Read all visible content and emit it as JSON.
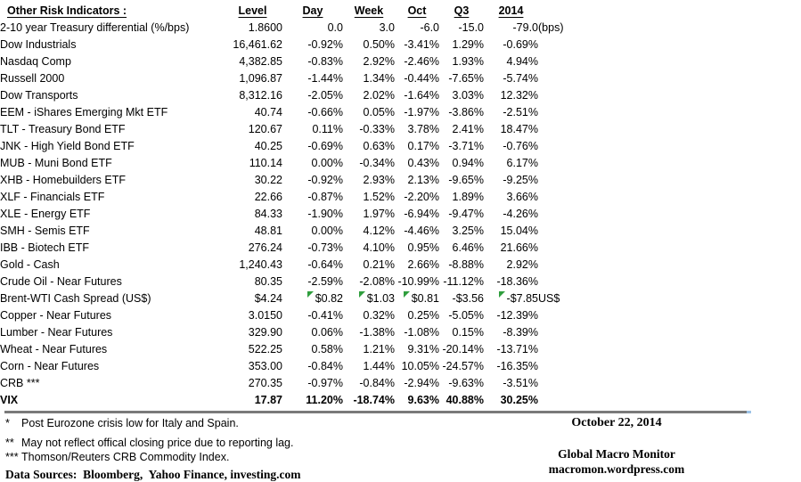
{
  "table": {
    "title": "Other Risk Indicators :",
    "columns": [
      "Level",
      "Day",
      "Week",
      "Oct",
      "Q3",
      "2014"
    ],
    "rows": [
      {
        "name": "2-10 year Treasury differential (%/bps)",
        "level": "1.8600",
        "day": "0.0",
        "week": "3.0",
        "oct": "-6.0",
        "q3": "-15.0",
        "y2014": "-79.0",
        "note": "(bps)"
      },
      {
        "name": "Dow Industrials",
        "level": "16,461.62",
        "day": "-0.92%",
        "week": "0.50%",
        "oct": "-3.41%",
        "q3": "1.29%",
        "y2014": "-0.69%",
        "note": ""
      },
      {
        "name": "Nasdaq Comp",
        "level": "4,382.85",
        "day": "-0.83%",
        "week": "2.92%",
        "oct": "-2.46%",
        "q3": "1.93%",
        "y2014": "4.94%",
        "note": ""
      },
      {
        "name": "Russell 2000",
        "level": "1,096.87",
        "day": "-1.44%",
        "week": "1.34%",
        "oct": "-0.44%",
        "q3": "-7.65%",
        "y2014": "-5.74%",
        "note": ""
      },
      {
        "name": "Dow Transports",
        "level": "8,312.16",
        "day": "-2.05%",
        "week": "2.02%",
        "oct": "-1.64%",
        "q3": "3.03%",
        "y2014": "12.32%",
        "note": ""
      },
      {
        "name": "EEM - iShares Emerging Mkt ETF",
        "level": "40.74",
        "day": "-0.66%",
        "week": "0.05%",
        "oct": "-1.97%",
        "q3": "-3.86%",
        "y2014": "-2.51%",
        "note": ""
      },
      {
        "name": "TLT - Treasury Bond ETF",
        "level": "120.67",
        "day": "0.11%",
        "week": "-0.33%",
        "oct": "3.78%",
        "q3": "2.41%",
        "y2014": "18.47%",
        "note": ""
      },
      {
        "name": "JNK - High Yield Bond ETF",
        "level": "40.25",
        "day": "-0.69%",
        "week": "0.63%",
        "oct": "0.17%",
        "q3": "-3.71%",
        "y2014": "-0.76%",
        "note": ""
      },
      {
        "name": "MUB - Muni Bond ETF",
        "level": "110.14",
        "day": "0.00%",
        "week": "-0.34%",
        "oct": "0.43%",
        "q3": "0.94%",
        "y2014": "6.17%",
        "note": ""
      },
      {
        "name": "XHB - Homebuilders ETF",
        "level": "30.22",
        "day": "-0.92%",
        "week": "2.93%",
        "oct": "2.13%",
        "q3": "-9.65%",
        "y2014": "-9.25%",
        "note": ""
      },
      {
        "name": "XLF - Financials ETF",
        "level": "22.66",
        "day": "-0.87%",
        "week": "1.52%",
        "oct": "-2.20%",
        "q3": "1.89%",
        "y2014": "3.66%",
        "note": ""
      },
      {
        "name": "XLE - Energy ETF",
        "level": "84.33",
        "day": "-1.90%",
        "week": "1.97%",
        "oct": "-6.94%",
        "q3": "-9.47%",
        "y2014": "-4.26%",
        "note": ""
      },
      {
        "name": "SMH - Semis ETF",
        "level": "48.81",
        "day": "0.00%",
        "week": "4.12%",
        "oct": "-4.46%",
        "q3": "3.25%",
        "y2014": "15.04%",
        "note": ""
      },
      {
        "name": "IBB - Biotech ETF",
        "level": "276.24",
        "day": "-0.73%",
        "week": "4.10%",
        "oct": "0.95%",
        "q3": "6.46%",
        "y2014": "21.66%",
        "note": ""
      },
      {
        "name": "Gold - Cash",
        "level": "1,240.43",
        "day": "-0.64%",
        "week": "0.21%",
        "oct": "2.66%",
        "q3": "-8.88%",
        "y2014": "2.92%",
        "note": ""
      },
      {
        "name": "Crude Oil - Near Futures",
        "level": "80.35",
        "day": "-2.59%",
        "week": "-2.08%",
        "oct": "-10.99%",
        "q3": "-11.12%",
        "y2014": "-18.36%",
        "note": ""
      },
      {
        "name": "Brent-WTI Cash Spread (US$)",
        "level": "$4.24",
        "day": "$0.82",
        "week": "$1.03",
        "oct": "$0.81",
        "q3": "-$3.56",
        "y2014": "-$7.85",
        "note": "US$",
        "flags": [
          "day",
          "week",
          "oct",
          "y2014"
        ]
      },
      {
        "name": "Copper - Near Futures",
        "level": "3.0150",
        "day": "-0.41%",
        "week": "0.32%",
        "oct": "0.25%",
        "q3": "-5.05%",
        "y2014": "-12.39%",
        "note": ""
      },
      {
        "name": "Lumber - Near Futures",
        "level": "329.90",
        "day": "0.06%",
        "week": "-1.38%",
        "oct": "-1.08%",
        "q3": "0.15%",
        "y2014": "-8.39%",
        "note": ""
      },
      {
        "name": "Wheat - Near Futures",
        "level": "522.25",
        "day": "0.58%",
        "week": "1.21%",
        "oct": "9.31%",
        "q3": "-20.14%",
        "y2014": "-13.71%",
        "note": ""
      },
      {
        "name": "Corn - Near Futures",
        "level": "353.00",
        "day": "-0.84%",
        "week": "1.44%",
        "oct": "10.05%",
        "q3": "-24.57%",
        "y2014": "-16.35%",
        "note": ""
      },
      {
        "name": "CRB ***",
        "level": "270.35",
        "day": "-0.97%",
        "week": "-0.84%",
        "oct": "-2.94%",
        "q3": "-9.63%",
        "y2014": "-3.51%",
        "note": ""
      },
      {
        "name": "VIX",
        "level": "17.87",
        "day": "11.20%",
        "week": "-18.74%",
        "oct": "9.63%",
        "q3": "40.88%",
        "y2014": "30.25%",
        "note": "",
        "emphasis": true
      }
    ]
  },
  "footnotes": [
    {
      "marker": "*",
      "text": "Post Eurozone crisis low for Italy and Spain."
    },
    {
      "marker": "**",
      "text": "May not reflect offical closing price due to reporting lag."
    },
    {
      "marker": "***",
      "text": "Thomson/Reuters CRB Commodity Index."
    }
  ],
  "sources_line": "Data Sources:  Bloomberg,  Yahoo Finance, investing.com",
  "footer_right": {
    "date": "October 22, 2014",
    "brand": "Global Macro Monitor",
    "url": "macromon.wordpress.com"
  },
  "colors": {
    "text": "#000000",
    "flag_green": "#2f9e3d",
    "rule_gray": "#7a7a7a",
    "rule_tip_blue": "#9dc3e6"
  }
}
